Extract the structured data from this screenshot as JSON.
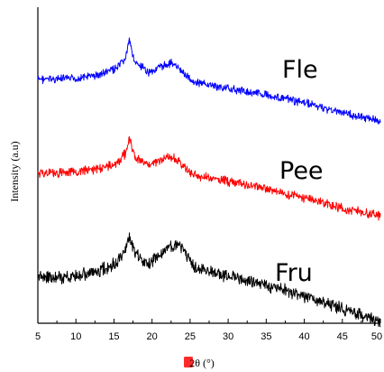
{
  "chart_data": {
    "type": "line",
    "xlabel": "2θ (°)",
    "ylabel": "Intensity (a.u)",
    "xlim": [
      5,
      50
    ],
    "x_ticks": [
      5,
      10,
      15,
      20,
      25,
      30,
      35,
      40,
      45,
      50
    ],
    "y_ticks_labelled": false,
    "grid": false,
    "legend": "none",
    "series": [
      {
        "name": "Fle",
        "color": "#0000ff",
        "points": [
          [
            5,
            63
          ],
          [
            10,
            62
          ],
          [
            13,
            58
          ],
          [
            15.5,
            50
          ],
          [
            16.5,
            40
          ],
          [
            17,
            20
          ],
          [
            17.8,
            45
          ],
          [
            19.5,
            55
          ],
          [
            21,
            50
          ],
          [
            22.5,
            44
          ],
          [
            24,
            55
          ],
          [
            25.5,
            66
          ],
          [
            30,
            73
          ],
          [
            35,
            80
          ],
          [
            40,
            89
          ],
          [
            45,
            100
          ],
          [
            50,
            109
          ]
        ]
      },
      {
        "name": "Pee",
        "color": "#ff0000",
        "points": [
          [
            5,
            57
          ],
          [
            10,
            56
          ],
          [
            13,
            52
          ],
          [
            15.5,
            45
          ],
          [
            16.5,
            35
          ],
          [
            17,
            18
          ],
          [
            17.8,
            40
          ],
          [
            19.5,
            47
          ],
          [
            21,
            43
          ],
          [
            22.5,
            38
          ],
          [
            24,
            48
          ],
          [
            25.5,
            59
          ],
          [
            30,
            66
          ],
          [
            35,
            74
          ],
          [
            40,
            84
          ],
          [
            45,
            96
          ],
          [
            50,
            104
          ]
        ]
      },
      {
        "name": "Fru",
        "color": "#000000",
        "points": [
          [
            5,
            60
          ],
          [
            10,
            58
          ],
          [
            13,
            53
          ],
          [
            15.5,
            42
          ],
          [
            16.5,
            28
          ],
          [
            17,
            14
          ],
          [
            17.8,
            32
          ],
          [
            19.5,
            45
          ],
          [
            21,
            34
          ],
          [
            22.5,
            24
          ],
          [
            24,
            28
          ],
          [
            25.5,
            48
          ],
          [
            30,
            58
          ],
          [
            35,
            68
          ],
          [
            40,
            80
          ],
          [
            45,
            94
          ],
          [
            50,
            108
          ]
        ]
      }
    ]
  },
  "icons": {
    "marker_color": "#ff2a2a"
  }
}
